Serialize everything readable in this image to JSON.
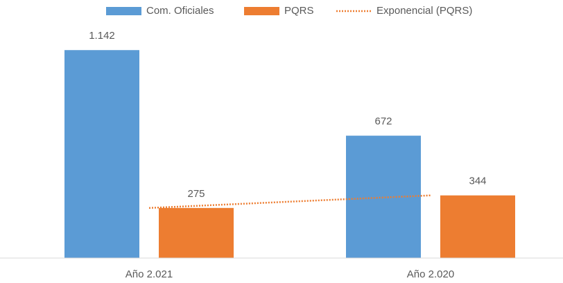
{
  "chart_data": {
    "type": "bar",
    "categories": [
      "Año 2.021",
      "Año 2.020"
    ],
    "series": [
      {
        "name": "Com. Oficiales",
        "color": "#5b9bd5",
        "values": [
          1142,
          672
        ],
        "value_labels": [
          "1.142",
          "672"
        ]
      },
      {
        "name": "PQRS",
        "color": "#ed7d31",
        "values": [
          275,
          344
        ],
        "value_labels": [
          "275",
          "344"
        ]
      }
    ],
    "trendline": {
      "name": "Exponencial (PQRS)",
      "color": "#ed7d31",
      "series": 1
    },
    "ylim": [
      0,
      1200
    ],
    "legend": "top"
  }
}
